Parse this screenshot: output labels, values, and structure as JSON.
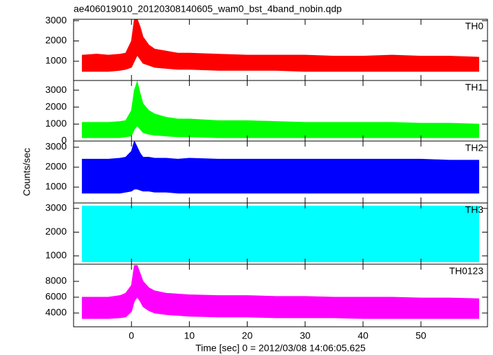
{
  "chart_data": [
    {
      "type": "band",
      "title": "ae406019010_20120308140605_wam0_bst_4band_nobin.qdp",
      "label": "TH0",
      "color": "#ff0000",
      "x": [
        -8.5,
        -6,
        -4,
        -2,
        -1,
        0,
        0.5,
        1,
        1.5,
        2,
        3,
        4,
        6,
        8,
        10,
        15,
        20,
        25,
        30,
        35,
        40,
        45,
        50,
        55,
        60
      ],
      "high": [
        1300,
        1350,
        1300,
        1350,
        1400,
        2000,
        3070,
        3070,
        2700,
        2200,
        1800,
        1600,
        1500,
        1400,
        1400,
        1350,
        1300,
        1300,
        1300,
        1250,
        1250,
        1300,
        1250,
        1250,
        1200
      ],
      "low": [
        500,
        500,
        500,
        550,
        600,
        700,
        1000,
        1300,
        1100,
        900,
        800,
        700,
        650,
        600,
        600,
        550,
        550,
        550,
        500,
        500,
        500,
        500,
        500,
        500,
        500
      ],
      "xlim": [
        -10,
        61.5
      ],
      "xticks": [
        0,
        10,
        20,
        30,
        40,
        50
      ],
      "ylim": [
        50,
        3070
      ],
      "yticks": [
        1000,
        2000,
        3000
      ]
    },
    {
      "type": "band",
      "label": "TH1",
      "color": "#00ff00",
      "x": [
        -8.5,
        -6,
        -4,
        -2,
        -1,
        0,
        0.5,
        1,
        1.5,
        2,
        3,
        4,
        6,
        8,
        10,
        15,
        20,
        25,
        30,
        35,
        40,
        45,
        50,
        55,
        60
      ],
      "high": [
        1100,
        1100,
        1100,
        1150,
        1200,
        1800,
        3000,
        3500,
        2800,
        2200,
        1800,
        1600,
        1400,
        1300,
        1300,
        1200,
        1200,
        1150,
        1100,
        1100,
        1100,
        1100,
        1050,
        1050,
        1000
      ],
      "low": [
        200,
        200,
        200,
        200,
        250,
        300,
        700,
        900,
        700,
        500,
        400,
        350,
        300,
        250,
        250,
        200,
        200,
        200,
        200,
        200,
        200,
        200,
        200,
        200,
        200
      ],
      "xlim": [
        -10,
        61.5
      ],
      "xticks": [
        0,
        10,
        20,
        30,
        40,
        50
      ],
      "ylim": [
        0,
        3570
      ],
      "yticks": [
        0,
        1000,
        2000,
        3000
      ]
    },
    {
      "type": "band",
      "label": "TH2",
      "color": "#0000ff",
      "ylabel": "Counts/sec",
      "x": [
        -8.5,
        -6,
        -4,
        -2,
        -1,
        0,
        0.5,
        1,
        1.5,
        2,
        3,
        4,
        6,
        8,
        10,
        15,
        20,
        25,
        30,
        35,
        40,
        45,
        50,
        55,
        60
      ],
      "high": [
        2400,
        2400,
        2400,
        2450,
        2500,
        2800,
        3300,
        3000,
        2700,
        2500,
        2500,
        2450,
        2450,
        2400,
        2450,
        2400,
        2400,
        2400,
        2400,
        2400,
        2400,
        2400,
        2400,
        2350,
        2350
      ],
      "low": [
        700,
        700,
        700,
        700,
        750,
        800,
        900,
        900,
        850,
        800,
        800,
        750,
        750,
        700,
        700,
        700,
        700,
        700,
        700,
        700,
        700,
        700,
        700,
        700,
        700
      ],
      "xlim": [
        -10,
        61.5
      ],
      "xticks": [
        0,
        10,
        20,
        30,
        40,
        50
      ],
      "ylim": [
        207,
        3310
      ],
      "yticks": [
        1000,
        2000,
        3000
      ]
    },
    {
      "type": "band",
      "label": "TH3",
      "color": "#00ffff",
      "x": [
        -8.5,
        -6,
        -4,
        -2,
        -1,
        0,
        0.5,
        1,
        1.5,
        2,
        3,
        4,
        6,
        8,
        10,
        15,
        20,
        25,
        30,
        35,
        40,
        45,
        50,
        55,
        60
      ],
      "high": [
        3100,
        3100,
        3100,
        3100,
        3100,
        3100,
        3100,
        3100,
        3100,
        3100,
        3100,
        3100,
        3100,
        3100,
        3100,
        3100,
        3100,
        3100,
        3100,
        3100,
        3100,
        3100,
        3100,
        3100,
        3100
      ],
      "low": [
        750,
        750,
        750,
        750,
        750,
        750,
        750,
        750,
        750,
        750,
        750,
        750,
        750,
        750,
        750,
        750,
        750,
        750,
        750,
        750,
        750,
        750,
        750,
        750,
        750
      ],
      "xlim": [
        -10,
        61.5
      ],
      "xticks": [
        0,
        10,
        20,
        30,
        40,
        50
      ],
      "ylim": [
        650,
        3230
      ],
      "yticks": [
        1000,
        2000,
        3000
      ]
    },
    {
      "type": "band",
      "label": "TH0123",
      "color": "#ff00ff",
      "xlabel": "Time [sec] 0 = 2012/03/08 14:06:05.625",
      "x": [
        -8.5,
        -6,
        -4,
        -2,
        -1,
        0,
        0.5,
        1,
        1.5,
        2,
        3,
        4,
        6,
        8,
        10,
        15,
        20,
        25,
        30,
        35,
        40,
        45,
        50,
        55,
        60
      ],
      "high": [
        6000,
        6000,
        6000,
        6200,
        6500,
        7500,
        10000,
        10000,
        9000,
        8000,
        7200,
        6800,
        6500,
        6400,
        6300,
        6200,
        6200,
        6100,
        6100,
        6000,
        6000,
        6000,
        5900,
        5900,
        5800
      ],
      "low": [
        3300,
        3300,
        3300,
        3400,
        3500,
        4200,
        5500,
        6000,
        5500,
        4800,
        4300,
        4000,
        3800,
        3700,
        3600,
        3500,
        3500,
        3400,
        3400,
        3400,
        3300,
        3300,
        3300,
        3300,
        3300
      ],
      "xlim": [
        -10,
        61.5
      ],
      "xticks": [
        0,
        10,
        20,
        30,
        40,
        50
      ],
      "ylim": [
        2260,
        10170
      ],
      "yticks": [
        4000,
        6000,
        8000
      ]
    }
  ]
}
